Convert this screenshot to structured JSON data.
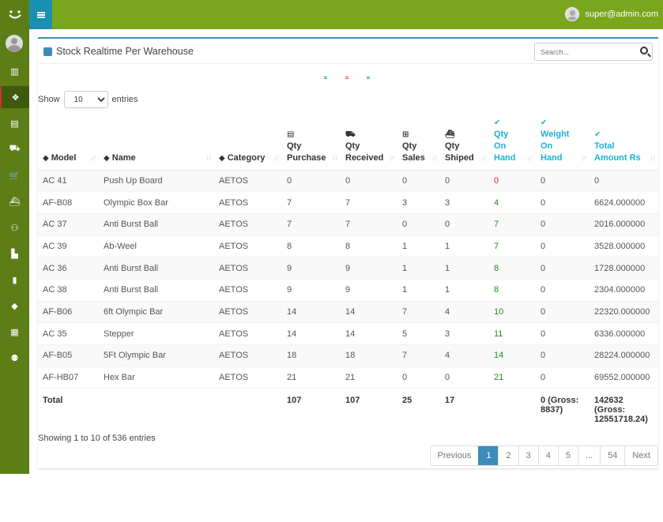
{
  "user": {
    "email": "super@admin.com"
  },
  "title": "Stock Realtime Per Warehouse",
  "search": {
    "placeholder": "Search..."
  },
  "export_colors": [
    "#1a8fb0",
    "#dd4b39",
    "#1a8fb0"
  ],
  "show": {
    "label": "Show",
    "value": "10",
    "suffix": "entries"
  },
  "sidebar_icons": [
    "bar-chart-icon",
    "cubes-icon",
    "document-icon",
    "truck-icon",
    "cart-icon",
    "ship-icon",
    "user-plus-icon",
    "industry-icon",
    "barcode-icon",
    "tag-icon",
    "calculator-icon",
    "users-icon"
  ],
  "columns": [
    {
      "label": "Model",
      "icon": "tag"
    },
    {
      "label": "Name",
      "icon": "tag"
    },
    {
      "label": "Category",
      "icon": "tag"
    },
    {
      "label": "Qty Purchase",
      "icon": "doc"
    },
    {
      "label": "Qty Received",
      "icon": "truck"
    },
    {
      "label": "Qty Sales",
      "icon": "cart"
    },
    {
      "label": "Qty Shiped",
      "icon": "ship"
    },
    {
      "label": "Qty On Hand",
      "icon": "check"
    },
    {
      "label": "Weight On Hand",
      "icon": "check"
    },
    {
      "label": "Total Amount Rs",
      "icon": "check"
    }
  ],
  "rows": [
    [
      "AC 41",
      "Push Up Board",
      "AETOS",
      "0",
      "0",
      "0",
      "0",
      "0",
      "0",
      "0"
    ],
    [
      "AF-B08",
      "Olympic Box Bar",
      "AETOS",
      "7",
      "7",
      "3",
      "3",
      "4",
      "0",
      "6624.000000"
    ],
    [
      "AC 37",
      "Anti Burst Ball",
      "AETOS",
      "7",
      "7",
      "0",
      "0",
      "7",
      "0",
      "2016.000000"
    ],
    [
      "AC 39",
      "Ab-Weel",
      "AETOS",
      "8",
      "8",
      "1",
      "1",
      "7",
      "0",
      "3528.000000"
    ],
    [
      "AC 36",
      "Anti Burst Ball",
      "AETOS",
      "9",
      "9",
      "1",
      "1",
      "8",
      "0",
      "1728.000000"
    ],
    [
      "AC 38",
      "Anti Burst Ball",
      "AETOS",
      "9",
      "9",
      "1",
      "1",
      "8",
      "0",
      "2304.000000"
    ],
    [
      "AF-B06",
      "6ft Olympic Bar",
      "AETOS",
      "14",
      "14",
      "7",
      "4",
      "10",
      "0",
      "22320.000000"
    ],
    [
      "AC 35",
      "Stepper",
      "AETOS",
      "14",
      "14",
      "5",
      "3",
      "11",
      "0",
      "6336.000000"
    ],
    [
      "AF-B05",
      "5Ft Olympic Bar",
      "AETOS",
      "18",
      "18",
      "7",
      "4",
      "14",
      "0",
      "28224.000000"
    ],
    [
      "AF-HB07",
      "Hex Bar",
      "AETOS",
      "21",
      "21",
      "0",
      "0",
      "21",
      "0",
      "69552.000000"
    ]
  ],
  "total": [
    "Total",
    "",
    "",
    "107",
    "107",
    "25",
    "17",
    "",
    "0 (Gross: 8837)",
    "142632 (Gross: 12551718.24)"
  ],
  "info": "Showing 1 to 10 of 536 entries",
  "pager": [
    "Previous",
    "1",
    "2",
    "3",
    "4",
    "5",
    "...",
    "54",
    "Next"
  ]
}
